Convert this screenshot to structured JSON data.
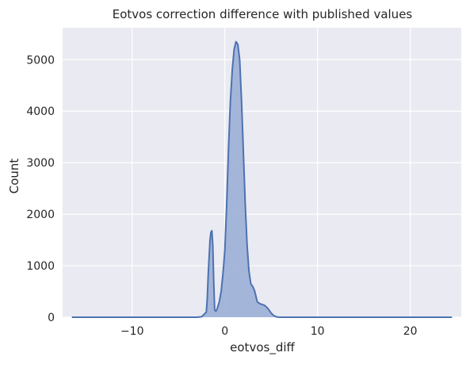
{
  "chart_data": {
    "type": "area",
    "title": "Eotvos correction difference with published values",
    "xlabel": "eotvos_diff",
    "ylabel": "Count",
    "xlim": [
      -17.5,
      25.5
    ],
    "ylim": [
      0,
      5620
    ],
    "x_ticks": [
      -10,
      0,
      10,
      20
    ],
    "x_tick_labels": [
      "−10",
      "0",
      "10",
      "20"
    ],
    "y_ticks": [
      0,
      1000,
      2000,
      3000,
      4000,
      5000
    ],
    "y_tick_labels": [
      "0",
      "1000",
      "2000",
      "3000",
      "4000",
      "5000"
    ],
    "grid": true,
    "style": {
      "background": "#eaeaf2",
      "grid_color": "#ffffff",
      "fill_color": "#a0b2d8",
      "line_color": "#4c72b0"
    },
    "series": [
      {
        "x": [
          -16.5,
          -3.0,
          -2.5,
          -2.0,
          -1.9,
          -1.8,
          -1.6,
          -1.5,
          -1.4,
          -1.3,
          -1.2,
          -1.1,
          -1.0,
          -0.9,
          -0.8,
          -0.6,
          -0.4,
          -0.2,
          0.0,
          0.2,
          0.4,
          0.6,
          0.8,
          1.0,
          1.2,
          1.4,
          1.6,
          1.8,
          2.0,
          2.2,
          2.4,
          2.6,
          2.8,
          3.0,
          3.2,
          3.5,
          3.8,
          4.0,
          4.3,
          4.6,
          5.0,
          5.3,
          5.6,
          5.9,
          6.2,
          24.5
        ],
        "y": [
          0,
          0,
          10,
          100,
          350,
          800,
          1500,
          1650,
          1680,
          1400,
          700,
          150,
          120,
          130,
          180,
          300,
          500,
          850,
          1300,
          2200,
          3300,
          4200,
          4800,
          5200,
          5350,
          5300,
          5000,
          4200,
          3200,
          2200,
          1400,
          900,
          650,
          600,
          520,
          300,
          260,
          250,
          230,
          180,
          80,
          30,
          5,
          0,
          0,
          0
        ]
      }
    ]
  }
}
